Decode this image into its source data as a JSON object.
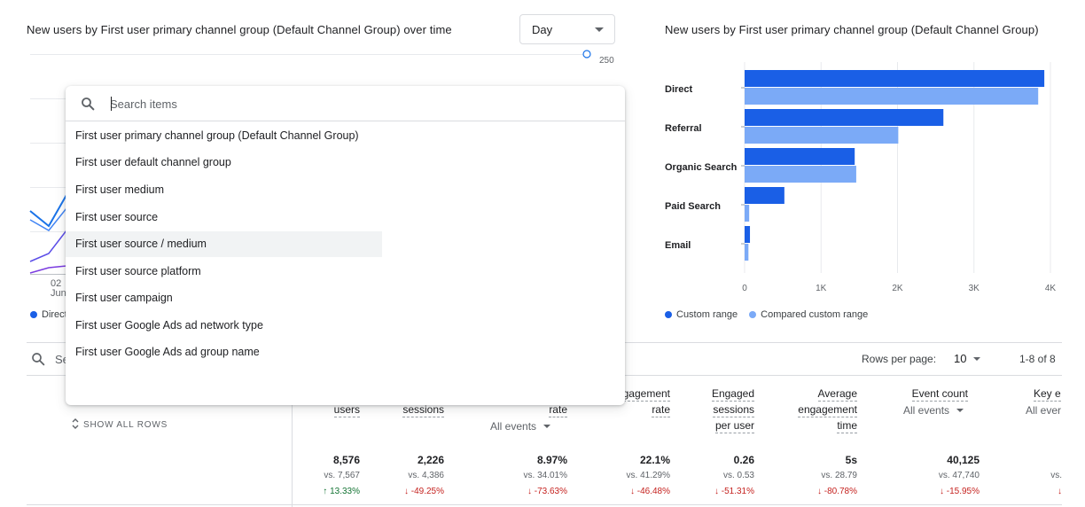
{
  "line_card": {
    "title": "New users by First user primary channel group (Default Channel Group) over time",
    "period_select": "Day",
    "y_tick_top": "250",
    "x_tick_day": "02",
    "x_tick_month": "Jun",
    "legend_first": "Direct"
  },
  "dropdown": {
    "placeholder": "Search items",
    "items": [
      "First user primary channel group (Default Channel Group)",
      "First user default channel group",
      "First user medium",
      "First user source",
      "First user source / medium",
      "First user source platform",
      "First user campaign",
      "First user Google Ads ad network type",
      "First user Google Ads ad group name"
    ],
    "highlighted_index": 4
  },
  "bar_card": {
    "title": "New users by First user primary channel group (Default Channel Group)",
    "legend": [
      "Custom range",
      "Compared custom range"
    ],
    "colors": {
      "custom": "#1a5fe6",
      "compared": "#7baaf7"
    },
    "x_ticks": [
      "0",
      "1K",
      "2K",
      "3K",
      "4K"
    ]
  },
  "chart_data": {
    "type": "bar",
    "orientation": "horizontal",
    "categories": [
      "Direct",
      "Referral",
      "Organic Search",
      "Paid Search",
      "Email"
    ],
    "series": [
      {
        "name": "Custom range",
        "values": [
          3920,
          2600,
          1440,
          520,
          70
        ]
      },
      {
        "name": "Compared custom range",
        "values": [
          3840,
          2010,
          1460,
          60,
          50
        ]
      }
    ],
    "xlim": [
      0,
      4000
    ]
  },
  "table": {
    "search_placeholder": "Se",
    "rows_per_page_label": "Rows per page:",
    "rows_per_page": "10",
    "range": "1-8 of 8",
    "show_all_rows": "SHOW ALL ROWS",
    "cols": {
      "users": {
        "h1": "users",
        "val": "8,576",
        "vs": "vs. 7,567",
        "pct": "↑ 13.33%"
      },
      "sessions": {
        "h1": "sessions",
        "val": "2,226",
        "vs": "vs. 4,386",
        "pct": "↓ -49.25%"
      },
      "rate": {
        "h1": "rate",
        "sub": "All events",
        "val": "8.97%",
        "vs": "vs. 34.01%",
        "pct": "↓ -73.63%"
      },
      "engagement_rate": {
        "h1": "gagement",
        "h2": "rate",
        "val": "22.1%",
        "vs": "vs. 41.29%",
        "pct": "↓ -46.48%"
      },
      "engaged": {
        "h1": "Engaged",
        "h2": "sessions",
        "h3": "per user",
        "val": "0.26",
        "vs": "vs. 0.53",
        "pct": "↓ -51.31%"
      },
      "avg_time": {
        "h1": "Average",
        "h2": "engagement",
        "h3": "time",
        "val": "5s",
        "vs": "vs. 28.79",
        "pct": "↓ -80.78%"
      },
      "event_count": {
        "h1": "Event count",
        "sub": "All events",
        "val": "40,125",
        "vs": "vs. 47,740",
        "pct": "↓ -15.95%"
      },
      "key_events": {
        "h1": "Key e",
        "sub": "All ever",
        "vs": "vs.",
        "pct": "↓"
      }
    }
  }
}
